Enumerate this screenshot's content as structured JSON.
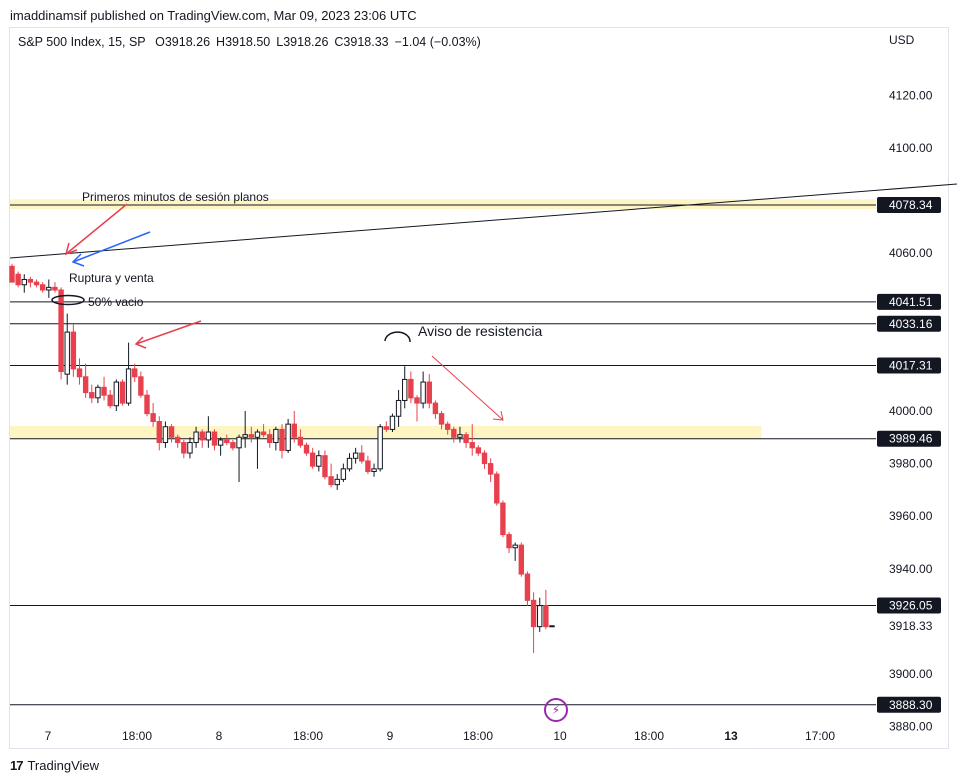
{
  "attribution": "imaddinamsif published on TradingView.com, Mar 09, 2023 23:06 UTC",
  "legend": {
    "symbol": "S&P 500 Index, 15, SP",
    "open": "O3918.26",
    "high": "H3918.50",
    "low": "L3918.26",
    "close": "C3918.33",
    "change": "−1.04 (−0.03%)"
  },
  "currency": "USD",
  "footer": {
    "brand": "TradingView",
    "mark": "17"
  },
  "colors": {
    "up": "#131722",
    "down": "#e8414e",
    "zone": "#fff5c4",
    "arrow_red": "#e8414e",
    "arrow_blue": "#2962ff",
    "bolt": "#9c27b0"
  },
  "chart_data": {
    "type": "candlestick",
    "title": "S&P 500 Index, 15, SP",
    "ylim": [
      3873,
      4146
    ],
    "y_ticks": [
      4120,
      4100,
      4060,
      4000,
      3980,
      3960,
      3940,
      3900,
      3880
    ],
    "x_ticks": [
      "7",
      "18:00",
      "8",
      "18:00",
      "9",
      "18:00",
      "10",
      "18:00",
      "13",
      "17:00"
    ],
    "x_ticks_bold": [
      "13"
    ],
    "last_price": "3918.33",
    "horizontal_levels": [
      {
        "value": 4078.34,
        "label": "4078.34"
      },
      {
        "value": 4041.51,
        "label": "4041.51"
      },
      {
        "value": 4033.16,
        "label": "4033.16"
      },
      {
        "value": 4017.31,
        "label": "4017.31"
      },
      {
        "value": 3989.46,
        "label": "3989.46"
      },
      {
        "value": 3926.05,
        "label": "3926.05"
      },
      {
        "value": 3888.3,
        "label": "3888.30"
      }
    ],
    "zones": [
      {
        "from": 4076.8,
        "to": 4080.5,
        "x_end": "full"
      },
      {
        "from": 3989.46,
        "to": 3994.3,
        "x_end": 136
      }
    ],
    "annotations": [
      "Primeros minutos de sesión planos",
      "Ruptura y venta",
      "50% vacio",
      "Aviso de resistencia"
    ],
    "candles": [
      [
        4055,
        4056,
        4050,
        4049
      ],
      [
        4052,
        4053,
        4047,
        4048
      ],
      [
        4048,
        4052,
        4045,
        4050
      ],
      [
        4050,
        4051,
        4047,
        4049
      ],
      [
        4049,
        4050,
        4047,
        4048
      ],
      [
        4048,
        4049,
        4045,
        4046
      ],
      [
        4046,
        4050,
        4043,
        4047
      ],
      [
        4047,
        4049,
        4045,
        4046
      ],
      [
        4046,
        4047,
        4012,
        4015
      ],
      [
        4014,
        4037,
        4010,
        4030
      ],
      [
        4030,
        4033,
        4013,
        4016
      ],
      [
        4016,
        4020,
        4010,
        4013
      ],
      [
        4013,
        4018,
        4005,
        4007
      ],
      [
        4007,
        4010,
        4003,
        4005
      ],
      [
        4005,
        4010,
        4003,
        4009
      ],
      [
        4009,
        4013,
        4004,
        4006
      ],
      [
        4006,
        4008,
        4001,
        4002
      ],
      [
        4002,
        4012,
        4000,
        4011
      ],
      [
        4011,
        4012,
        4002,
        4003
      ],
      [
        4003,
        4026,
        4002,
        4016
      ],
      [
        4016,
        4018,
        4011,
        4013
      ],
      [
        4013,
        4015,
        4005,
        4006
      ],
      [
        4006,
        4008,
        3998,
        3999
      ],
      [
        3999,
        4003,
        3994,
        3996
      ],
      [
        3996,
        3998,
        3985,
        3988
      ],
      [
        3988,
        3996,
        3986,
        3994
      ],
      [
        3994,
        3995,
        3988,
        3990
      ],
      [
        3990,
        3991,
        3986,
        3988
      ],
      [
        3988,
        3989,
        3982,
        3984
      ],
      [
        3984,
        3990,
        3982,
        3988
      ],
      [
        3988,
        3994,
        3986,
        3992
      ],
      [
        3992,
        3993,
        3986,
        3989
      ],
      [
        3989,
        3998,
        3986,
        3992
      ],
      [
        3992,
        3993,
        3985,
        3987
      ],
      [
        3987,
        3990,
        3983,
        3989
      ],
      [
        3989,
        3991,
        3987,
        3988
      ],
      [
        3988,
        3989,
        3985,
        3986
      ],
      [
        3986,
        3991,
        3973,
        3990
      ],
      [
        3990,
        4000,
        3986,
        3991
      ],
      [
        3991,
        3994,
        3988,
        3990
      ],
      [
        3990,
        3993,
        3978,
        3992
      ],
      [
        3992,
        3995,
        3990,
        3991
      ],
      [
        3991,
        3993,
        3986,
        3988
      ],
      [
        3988,
        3994,
        3985,
        3993
      ],
      [
        3993,
        3995,
        3982,
        3985
      ],
      [
        3985,
        3997,
        3984,
        3995
      ],
      [
        3995,
        4000,
        3988,
        3990
      ],
      [
        3990,
        3993,
        3986,
        3987
      ],
      [
        3987,
        3988,
        3983,
        3984
      ],
      [
        3984,
        3986,
        3978,
        3979
      ],
      [
        3979,
        3985,
        3977,
        3983
      ],
      [
        3983,
        3985,
        3974,
        3975
      ],
      [
        3975,
        3980,
        3971,
        3972
      ],
      [
        3972,
        3976,
        3970,
        3974
      ],
      [
        3974,
        3980,
        3973,
        3978
      ],
      [
        3978,
        3984,
        3977,
        3982
      ],
      [
        3982,
        3986,
        3980,
        3984
      ],
      [
        3984,
        3987,
        3980,
        3981
      ],
      [
        3981,
        3983,
        3976,
        3977
      ],
      [
        3977,
        3980,
        3975,
        3978
      ],
      [
        3978,
        3995,
        3977,
        3994
      ],
      [
        3994,
        3996,
        3992,
        3993
      ],
      [
        3993,
        3999,
        3992,
        3998
      ],
      [
        3998,
        4008,
        3994,
        4004
      ],
      [
        4004,
        4017,
        4001,
        4012
      ],
      [
        4012,
        4015,
        4003,
        4005
      ],
      [
        4005,
        4006,
        3996,
        4003
      ],
      [
        4003,
        4015,
        4001,
        4011
      ],
      [
        4011,
        4014,
        4001,
        4003
      ],
      [
        4003,
        4004,
        3997,
        3999
      ],
      [
        3999,
        4000,
        3993,
        3995
      ],
      [
        3995,
        3996,
        3991,
        3993
      ],
      [
        3993,
        3994,
        3988,
        3990
      ],
      [
        3990,
        3994,
        3988,
        3991
      ],
      [
        3991,
        3992,
        3986,
        3988
      ],
      [
        3988,
        3995,
        3983,
        3986
      ],
      [
        3986,
        3987,
        3983,
        3984
      ],
      [
        3984,
        3985,
        3978,
        3980
      ],
      [
        3980,
        3982,
        3973,
        3976
      ],
      [
        3976,
        3977,
        3964,
        3965
      ],
      [
        3965,
        3966,
        3952,
        3953
      ],
      [
        3953,
        3954,
        3946,
        3948
      ],
      [
        3948,
        3950,
        3943,
        3949
      ],
      [
        3949,
        3950,
        3937,
        3938
      ],
      [
        3938,
        3939,
        3926,
        3928
      ],
      [
        3928,
        3931,
        3908,
        3918
      ],
      [
        3918,
        3929,
        3916,
        3926
      ],
      [
        3926,
        3932,
        3917,
        3918
      ],
      [
        3918.26,
        3918.5,
        3918.26,
        3918.33
      ]
    ]
  }
}
